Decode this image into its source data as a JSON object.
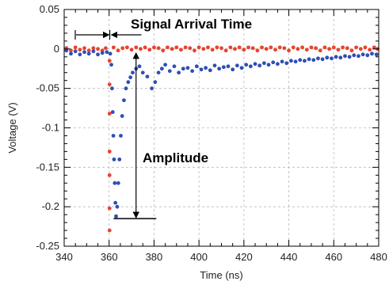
{
  "chart_data": {
    "type": "scatter",
    "title": "",
    "xlabel": "Time (ns)",
    "ylabel": "Voltage (V)",
    "xlim": [
      340,
      480
    ],
    "ylim": [
      -0.25,
      0.05
    ],
    "grid": true,
    "xticks": [
      340,
      360,
      380,
      400,
      420,
      440,
      460,
      480
    ],
    "yticks": [
      -0.25,
      -0.2,
      -0.15,
      -0.1,
      -0.05,
      0,
      0.05
    ],
    "xtick_labels": [
      "340",
      "360",
      "380",
      "400",
      "420",
      "440",
      "460",
      "480"
    ],
    "ytick_labels": [
      "-0.25",
      "-0.2",
      "-0.15",
      "-0.1",
      "-0.05",
      "0",
      "0.05"
    ],
    "series": [
      {
        "color": "#e8432e",
        "marker": "dot",
        "points": [
          [
            341,
            0.001
          ],
          [
            343,
            -0.002
          ],
          [
            345,
            0.002
          ],
          [
            347,
            -0.001
          ],
          [
            349,
            0.001
          ],
          [
            351,
            -0.002
          ],
          [
            353,
            0.001
          ],
          [
            355,
            0.0
          ],
          [
            357,
            -0.002
          ],
          [
            358.5,
            0.001
          ],
          [
            360.2,
            -0.015
          ],
          [
            360.2,
            -0.045
          ],
          [
            360.2,
            -0.082
          ],
          [
            360.2,
            -0.13
          ],
          [
            360.2,
            -0.16
          ],
          [
            360.2,
            -0.202
          ],
          [
            360.2,
            -0.23
          ],
          [
            362,
            0.002
          ],
          [
            364,
            -0.002
          ],
          [
            366,
            0.001
          ],
          [
            368,
            0.002
          ],
          [
            370,
            -0.001
          ],
          [
            372,
            0.002
          ],
          [
            374,
            0.0
          ],
          [
            376,
            0.002
          ],
          [
            378,
            -0.001
          ],
          [
            380,
            0.002
          ],
          [
            382,
            0.001
          ],
          [
            384,
            -0.002
          ],
          [
            386,
            0.002
          ],
          [
            388,
            0.0
          ],
          [
            390,
            0.002
          ],
          [
            392,
            -0.001
          ],
          [
            394,
            0.002
          ],
          [
            396,
            0.001
          ],
          [
            398,
            -0.002
          ],
          [
            400,
            0.002
          ],
          [
            402,
            0.0
          ],
          [
            404,
            0.002
          ],
          [
            406,
            -0.001
          ],
          [
            408,
            0.002
          ],
          [
            410,
            0.001
          ],
          [
            412,
            -0.002
          ],
          [
            414,
            0.002
          ],
          [
            416,
            0.0
          ],
          [
            418,
            0.002
          ],
          [
            420,
            -0.001
          ],
          [
            422,
            0.002
          ],
          [
            424,
            0.001
          ],
          [
            426,
            -0.002
          ],
          [
            428,
            0.002
          ],
          [
            430,
            0.0
          ],
          [
            432,
            0.002
          ],
          [
            434,
            -0.001
          ],
          [
            436,
            0.002
          ],
          [
            438,
            0.001
          ],
          [
            440,
            -0.002
          ],
          [
            442,
            0.002
          ],
          [
            444,
            0.0
          ],
          [
            446,
            0.002
          ],
          [
            448,
            -0.001
          ],
          [
            450,
            0.002
          ],
          [
            452,
            0.001
          ],
          [
            454,
            -0.002
          ],
          [
            456,
            0.002
          ],
          [
            458,
            0.0
          ],
          [
            460,
            0.002
          ],
          [
            462,
            -0.001
          ],
          [
            464,
            0.002
          ],
          [
            466,
            0.001
          ],
          [
            468,
            -0.002
          ],
          [
            470,
            0.002
          ],
          [
            472,
            0.0
          ],
          [
            474,
            0.002
          ],
          [
            476,
            -0.001
          ],
          [
            478,
            0.002
          ],
          [
            479.5,
            0.0
          ]
        ]
      },
      {
        "color": "#2f4fb5",
        "marker": "dot",
        "points": [
          [
            341,
            -0.002
          ],
          [
            343,
            -0.006
          ],
          [
            345,
            -0.003
          ],
          [
            347,
            -0.007
          ],
          [
            349,
            -0.004
          ],
          [
            351,
            -0.006
          ],
          [
            353,
            -0.003
          ],
          [
            355,
            -0.007
          ],
          [
            357,
            -0.005
          ],
          [
            359,
            -0.004
          ],
          [
            360.5,
            -0.006
          ],
          [
            361,
            -0.02
          ],
          [
            361.3,
            -0.05
          ],
          [
            361.6,
            -0.08
          ],
          [
            361.9,
            -0.11
          ],
          [
            362.2,
            -0.14
          ],
          [
            362.5,
            -0.17
          ],
          [
            362.8,
            -0.195
          ],
          [
            363.1,
            -0.212
          ],
          [
            363.6,
            -0.2
          ],
          [
            364.1,
            -0.17
          ],
          [
            364.6,
            -0.14
          ],
          [
            365.2,
            -0.11
          ],
          [
            365.8,
            -0.085
          ],
          [
            366.6,
            -0.065
          ],
          [
            367.5,
            -0.05
          ],
          [
            368.5,
            -0.042
          ],
          [
            369.5,
            -0.036
          ],
          [
            370.5,
            -0.03
          ],
          [
            372,
            -0.025
          ],
          [
            373.5,
            -0.022
          ],
          [
            375,
            -0.03
          ],
          [
            377,
            -0.035
          ],
          [
            379,
            -0.05
          ],
          [
            380.5,
            -0.042
          ],
          [
            382,
            -0.03
          ],
          [
            383.5,
            -0.025
          ],
          [
            385,
            -0.02
          ],
          [
            387,
            -0.028
          ],
          [
            389,
            -0.022
          ],
          [
            391,
            -0.03
          ],
          [
            393,
            -0.025
          ],
          [
            395,
            -0.024
          ],
          [
            397,
            -0.028
          ],
          [
            399,
            -0.022
          ],
          [
            401,
            -0.026
          ],
          [
            403,
            -0.024
          ],
          [
            405,
            -0.027
          ],
          [
            407,
            -0.021
          ],
          [
            409,
            -0.025
          ],
          [
            411,
            -0.023
          ],
          [
            413,
            -0.022
          ],
          [
            415,
            -0.026
          ],
          [
            417,
            -0.021
          ],
          [
            419,
            -0.024
          ],
          [
            421,
            -0.02
          ],
          [
            423,
            -0.022
          ],
          [
            425,
            -0.019
          ],
          [
            427,
            -0.021
          ],
          [
            429,
            -0.018
          ],
          [
            431,
            -0.02
          ],
          [
            433,
            -0.017
          ],
          [
            435,
            -0.019
          ],
          [
            437,
            -0.016
          ],
          [
            439,
            -0.018
          ],
          [
            441,
            -0.015
          ],
          [
            443,
            -0.016
          ],
          [
            445,
            -0.014
          ],
          [
            447,
            -0.015
          ],
          [
            449,
            -0.013
          ],
          [
            451,
            -0.014
          ],
          [
            453,
            -0.012
          ],
          [
            455,
            -0.013
          ],
          [
            457,
            -0.011
          ],
          [
            459,
            -0.012
          ],
          [
            461,
            -0.01
          ],
          [
            463,
            -0.011
          ],
          [
            465,
            -0.009
          ],
          [
            467,
            -0.01
          ],
          [
            469,
            -0.008
          ],
          [
            471,
            -0.009
          ],
          [
            473,
            -0.007
          ],
          [
            475,
            -0.008
          ],
          [
            477,
            -0.006
          ],
          [
            479,
            -0.007
          ]
        ]
      }
    ],
    "annotations": {
      "signal_arrival": {
        "text": "Signal Arrival Time",
        "x_start": 340,
        "x_end": 361
      },
      "amplitude": {
        "text": "Amplitude",
        "x": 372,
        "y_top": 0,
        "y_bottom": -0.215,
        "baseline_x": [
          362,
          381
        ]
      }
    }
  }
}
